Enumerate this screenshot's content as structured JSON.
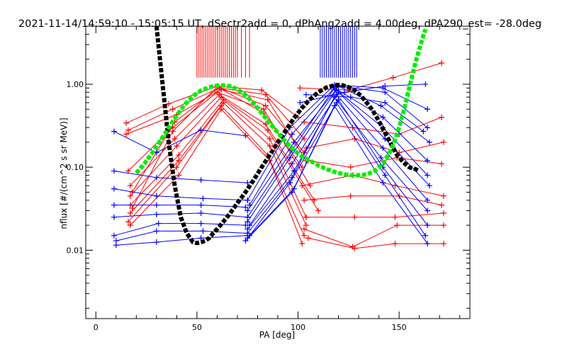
{
  "chart_data": {
    "type": "line",
    "title": "2021-11-14/14:59:10 - 15:05:15 UT, dSectr2add = 0, dPhAng2add = 4.00deg, dPA290_est= -28.0deg",
    "xlabel": "PA [deg]",
    "ylabel": "nflux [#/(cm^2 s sr MeV)]",
    "x_scale": "linear",
    "y_scale": "log",
    "xlim": [
      -5,
      185
    ],
    "ylim": [
      0.0015,
      5.0
    ],
    "x_ticks": [
      0,
      50,
      100,
      150
    ],
    "x_tick_labels": [
      "0",
      "50",
      "100",
      "150"
    ],
    "y_ticks": [
      0.01,
      0.1,
      1.0
    ],
    "y_tick_labels": [
      "0.01",
      "0.10",
      "1.00"
    ],
    "grid": false,
    "colors": {
      "red_series": "#ff0000",
      "blue_series": "#0000ff",
      "black_fit": "#000000",
      "green_fit": "#00ee00"
    },
    "markers": {
      "red_peak_x": [
        50,
        51,
        52,
        53,
        54,
        55,
        56,
        57,
        58,
        59,
        60,
        61,
        62,
        63,
        64,
        65,
        66,
        67,
        68,
        69,
        70,
        72,
        74,
        76
      ],
      "blue_peak_x": [
        111,
        112,
        113,
        114,
        115,
        116,
        117,
        118,
        119,
        120,
        121,
        122,
        123,
        124,
        125,
        126,
        127,
        128,
        129
      ],
      "y_bottom": 1.2,
      "y_top": 5.0
    },
    "series": [
      {
        "color": "black",
        "style": "thick-dashed",
        "x": [
          30,
          33,
          36,
          39,
          42,
          45,
          48,
          50,
          52,
          54,
          56,
          58,
          60,
          63,
          66,
          70,
          74,
          78,
          82,
          86,
          90,
          94,
          98,
          102,
          106,
          110,
          114,
          118,
          120,
          122,
          125,
          128,
          131,
          134,
          137,
          140,
          143,
          146,
          149,
          152,
          155,
          158,
          160
        ],
        "y": [
          5.0,
          1.0,
          0.2,
          0.06,
          0.025,
          0.016,
          0.0125,
          0.0122,
          0.0125,
          0.013,
          0.014,
          0.016,
          0.018,
          0.022,
          0.027,
          0.037,
          0.05,
          0.07,
          0.1,
          0.14,
          0.2,
          0.28,
          0.39,
          0.52,
          0.66,
          0.8,
          0.91,
          0.97,
          0.98,
          0.97,
          0.92,
          0.84,
          0.73,
          0.6,
          0.48,
          0.36,
          0.26,
          0.19,
          0.14,
          0.115,
          0.1,
          0.095,
          0.09
        ]
      },
      {
        "color": "green",
        "style": "thick-dashed",
        "x": [
          20,
          24,
          28,
          32,
          36,
          40,
          44,
          48,
          52,
          56,
          60,
          63,
          66,
          70,
          74,
          78,
          82,
          86,
          90,
          94,
          98,
          102,
          106,
          110,
          114,
          118,
          122,
          126,
          130,
          134,
          138,
          142,
          146,
          149,
          152,
          155,
          158,
          161,
          163
        ],
        "y": [
          0.085,
          0.11,
          0.15,
          0.21,
          0.3,
          0.42,
          0.57,
          0.72,
          0.84,
          0.92,
          0.96,
          0.97,
          0.95,
          0.87,
          0.74,
          0.59,
          0.45,
          0.34,
          0.26,
          0.2,
          0.16,
          0.135,
          0.12,
          0.105,
          0.095,
          0.088,
          0.083,
          0.08,
          0.08,
          0.082,
          0.09,
          0.11,
          0.16,
          0.25,
          0.45,
          0.9,
          1.8,
          3.2,
          4.6
        ]
      },
      {
        "color": "red",
        "x": [
          15,
          36,
          60,
          82,
          100
        ],
        "y": [
          0.34,
          0.58,
          0.95,
          0.85,
          0.4
        ]
      },
      {
        "color": "red",
        "x": [
          16,
          38,
          61,
          84,
          103
        ],
        "y": [
          0.28,
          0.5,
          0.9,
          0.75,
          0.22
        ]
      },
      {
        "color": "red",
        "x": [
          15,
          40,
          62,
          85,
          104
        ],
        "y": [
          0.25,
          0.43,
          0.86,
          0.65,
          0.12
        ]
      },
      {
        "color": "red",
        "x": [
          16,
          38,
          60,
          83,
          106
        ],
        "y": [
          0.09,
          0.3,
          0.8,
          0.5,
          0.06
        ]
      },
      {
        "color": "red",
        "x": [
          17,
          39,
          61,
          84,
          108
        ],
        "y": [
          0.06,
          0.22,
          0.75,
          0.33,
          0.04
        ]
      },
      {
        "color": "red",
        "x": [
          17,
          40,
          62,
          85,
          110
        ],
        "y": [
          0.045,
          0.18,
          0.7,
          0.28,
          0.03
        ]
      },
      {
        "color": "red",
        "x": [
          17,
          41,
          63,
          86,
          104
        ],
        "y": [
          0.035,
          0.14,
          0.65,
          0.22,
          0.025
        ]
      },
      {
        "color": "red",
        "x": [
          17,
          41,
          63,
          86,
          104
        ],
        "y": [
          0.028,
          0.12,
          0.6,
          0.18,
          0.02
        ]
      },
      {
        "color": "red",
        "x": [
          16,
          40,
          62,
          85,
          103
        ],
        "y": [
          0.022,
          0.1,
          0.55,
          0.14,
          0.015
        ]
      },
      {
        "color": "red",
        "x": [
          17,
          41,
          62,
          86,
          102
        ],
        "y": [
          0.02,
          0.08,
          0.5,
          0.12,
          0.012
        ]
      },
      {
        "color": "red",
        "x": [
          18,
          38,
          60,
          83,
          102
        ],
        "y": [
          0.032,
          0.27,
          0.93,
          0.45,
          0.1
        ]
      },
      {
        "color": "red",
        "x": [
          18,
          39,
          61,
          84,
          103
        ],
        "y": [
          0.05,
          0.35,
          0.91,
          0.55,
          0.15
        ]
      },
      {
        "color": "red",
        "x": [
          101,
          125,
          147,
          171
        ],
        "y": [
          0.9,
          0.85,
          1.2,
          1.8
        ]
      },
      {
        "color": "red",
        "x": [
          103,
          127,
          150,
          171
        ],
        "y": [
          0.35,
          0.3,
          0.25,
          0.4
        ]
      },
      {
        "color": "red",
        "x": [
          104,
          128,
          150,
          172
        ],
        "y": [
          0.17,
          0.22,
          0.15,
          0.2
        ]
      },
      {
        "color": "red",
        "x": [
          105,
          126,
          149,
          171
        ],
        "y": [
          0.12,
          0.1,
          0.13,
          0.11
        ]
      },
      {
        "color": "red",
        "x": [
          102,
          127,
          148,
          172
        ],
        "y": [
          0.06,
          0.08,
          0.06,
          0.045
        ]
      },
      {
        "color": "red",
        "x": [
          103,
          126,
          150,
          171
        ],
        "y": [
          0.04,
          0.045,
          0.045,
          0.035
        ]
      },
      {
        "color": "red",
        "x": [
          104,
          128,
          148,
          172
        ],
        "y": [
          0.025,
          0.025,
          0.025,
          0.028
        ]
      },
      {
        "color": "red",
        "x": [
          103,
          127,
          149,
          172
        ],
        "y": [
          0.018,
          0.011,
          0.02,
          0.02
        ]
      },
      {
        "color": "red",
        "x": [
          105,
          128,
          148,
          172
        ],
        "y": [
          0.014,
          0.0105,
          0.012,
          0.012
        ]
      },
      {
        "color": "blue",
        "x": [
          9,
          30,
          52,
          75
        ],
        "y": [
          0.09,
          0.075,
          0.07,
          0.065
        ]
      },
      {
        "color": "blue",
        "x": [
          9,
          30,
          53,
          75
        ],
        "y": [
          0.055,
          0.045,
          0.042,
          0.04
        ]
      },
      {
        "color": "blue",
        "x": [
          9,
          30,
          52,
          74
        ],
        "y": [
          0.035,
          0.035,
          0.035,
          0.033
        ]
      },
      {
        "color": "blue",
        "x": [
          9,
          30,
          52,
          75
        ],
        "y": [
          0.025,
          0.027,
          0.028,
          0.025
        ]
      },
      {
        "color": "blue",
        "x": [
          9,
          31,
          52,
          74
        ],
        "y": [
          0.015,
          0.021,
          0.021,
          0.02
        ]
      },
      {
        "color": "blue",
        "x": [
          10,
          30,
          53,
          75
        ],
        "y": [
          0.013,
          0.017,
          0.017,
          0.016
        ]
      },
      {
        "color": "blue",
        "x": [
          10,
          30,
          52,
          75
        ],
        "y": [
          0.0115,
          0.0125,
          0.014,
          0.015
        ]
      },
      {
        "color": "blue",
        "x": [
          9,
          30,
          52,
          74
        ],
        "y": [
          0.27,
          0.15,
          0.28,
          0.24
        ]
      },
      {
        "color": "blue",
        "x": [
          75,
          96,
          118,
          142,
          164
        ],
        "y": [
          0.04,
          0.3,
          0.98,
          0.9,
          0.5
        ]
      },
      {
        "color": "blue",
        "x": [
          76,
          97,
          119,
          143,
          164
        ],
        "y": [
          0.035,
          0.25,
          0.96,
          0.8,
          0.3
        ]
      },
      {
        "color": "blue",
        "x": [
          75,
          98,
          120,
          141,
          165
        ],
        "y": [
          0.03,
          0.2,
          0.94,
          0.55,
          0.2
        ]
      },
      {
        "color": "blue",
        "x": [
          75,
          97,
          118,
          142,
          164
        ],
        "y": [
          0.025,
          0.16,
          0.9,
          0.4,
          0.12
        ]
      },
      {
        "color": "blue",
        "x": [
          75,
          96,
          119,
          142,
          164
        ],
        "y": [
          0.022,
          0.13,
          0.85,
          0.3,
          0.08
        ]
      },
      {
        "color": "blue",
        "x": [
          76,
          97,
          120,
          143,
          165
        ],
        "y": [
          0.02,
          0.11,
          0.8,
          0.22,
          0.06
        ]
      },
      {
        "color": "blue",
        "x": [
          75,
          98,
          119,
          142,
          164
        ],
        "y": [
          0.018,
          0.09,
          0.75,
          0.17,
          0.04
        ]
      },
      {
        "color": "blue",
        "x": [
          75,
          97,
          118,
          141,
          164
        ],
        "y": [
          0.016,
          0.075,
          0.7,
          0.13,
          0.03
        ]
      },
      {
        "color": "blue",
        "x": [
          76,
          96,
          120,
          142,
          164
        ],
        "y": [
          0.015,
          0.065,
          0.65,
          0.1,
          0.02
        ]
      },
      {
        "color": "blue",
        "x": [
          75,
          98,
          119,
          143,
          163
        ],
        "y": [
          0.014,
          0.055,
          0.6,
          0.08,
          0.015
        ]
      },
      {
        "color": "blue",
        "x": [
          74,
          97,
          118,
          142,
          164
        ],
        "y": [
          0.013,
          0.05,
          0.55,
          0.065,
          0.012
        ]
      },
      {
        "color": "blue",
        "x": [
          101,
          123,
          143,
          163
        ],
        "y": [
          0.6,
          0.8,
          0.95,
          1.0
        ]
      },
      {
        "color": "blue",
        "x": [
          104,
          126,
          143,
          162
        ],
        "y": [
          0.75,
          0.7,
          0.6,
          0.27
        ]
      }
    ]
  }
}
